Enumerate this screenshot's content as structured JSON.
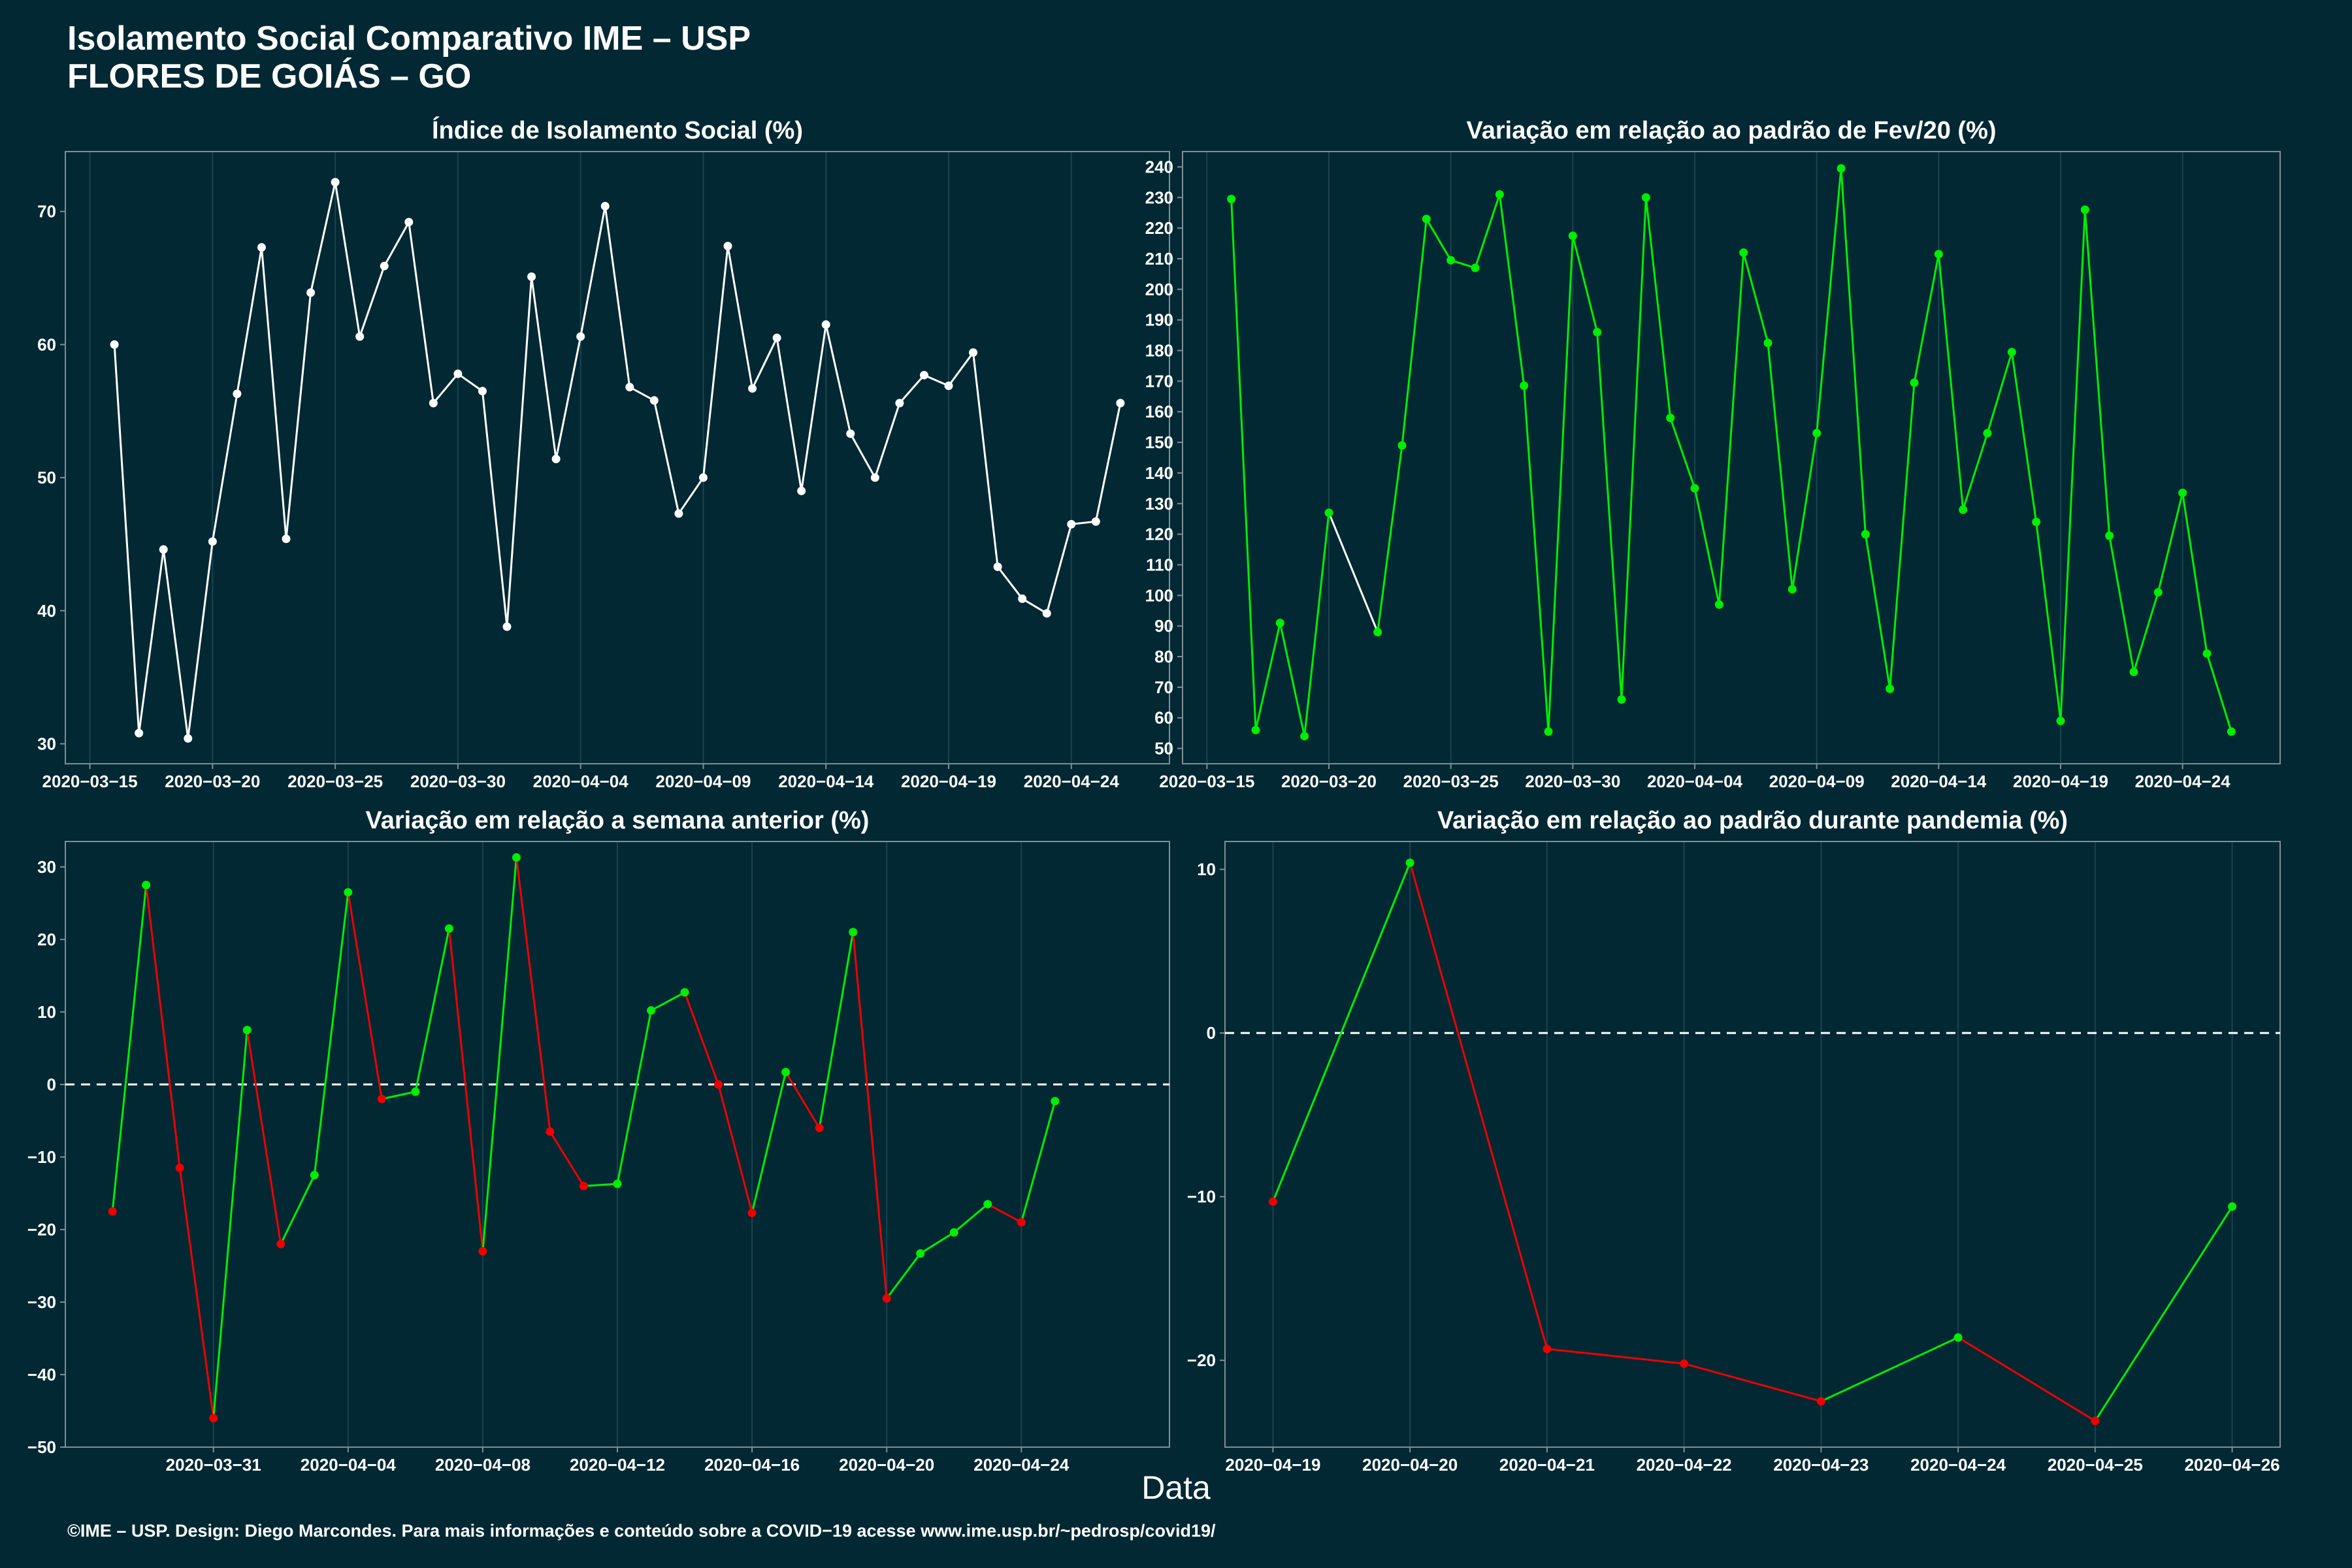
{
  "title_line1": "Isolamento Social Comparativo IME – USP",
  "title_line2": "FLORES DE GOIÁS – GO",
  "xlabel": "Data",
  "footer": "©IME – USP. Design: Diego Marcondes. Para mais informações e conteúdo sobre a COVID−19 acesse www.ime.usp.br/~pedrosp/covid19/",
  "colors": {
    "background": "#022833",
    "white": "#ffffff",
    "green": "#00ee00",
    "red": "#ee0000",
    "grid": "#1b4350"
  },
  "chart_data": [
    {
      "type": "line",
      "title": "Índice de Isolamento Social (%)",
      "start_date": "2020-03-16",
      "x_tick_labels": [
        "2020−03−15",
        "2020−03−20",
        "2020−03−25",
        "2020−03−30",
        "2020−04−04",
        "2020−04−09",
        "2020−04−14",
        "2020−04−19",
        "2020−04−24"
      ],
      "x_ticks": [
        "2020-03-15",
        "2020-03-20",
        "2020-03-25",
        "2020-03-30",
        "2020-04-04",
        "2020-04-09",
        "2020-04-14",
        "2020-04-19",
        "2020-04-24"
      ],
      "xlim": [
        "2020-03-14",
        "2020-04-28"
      ],
      "ylim": [
        28.5,
        74.5
      ],
      "y_ticks": [
        30,
        40,
        50,
        60,
        70
      ],
      "y_tick_labels": [
        "30",
        "40",
        "50",
        "60",
        "70"
      ],
      "color_mode": "white",
      "values": [
        60.0,
        30.8,
        44.6,
        30.4,
        45.2,
        56.3,
        67.3,
        45.4,
        63.9,
        72.2,
        60.6,
        65.9,
        69.2,
        55.6,
        57.8,
        56.5,
        38.8,
        65.1,
        51.4,
        60.6,
        70.4,
        56.8,
        55.8,
        47.3,
        50.0,
        67.4,
        56.7,
        60.5,
        49.0,
        61.5,
        53.3,
        50.0,
        55.6,
        57.7,
        56.9,
        59.4,
        43.3,
        40.9,
        39.8,
        46.5,
        46.7,
        55.6
      ]
    },
    {
      "type": "line",
      "title": "Variação em relação ao padrão de Fev/20 (%)",
      "start_date": "2020-03-16",
      "x_tick_labels": [
        "2020−03−15",
        "2020−03−20",
        "2020−03−25",
        "2020−03−30",
        "2020−04−04",
        "2020−04−09",
        "2020−04−14",
        "2020−04−19",
        "2020−04−24"
      ],
      "x_ticks": [
        "2020-03-15",
        "2020-03-20",
        "2020-03-25",
        "2020-03-30",
        "2020-04-04",
        "2020-04-09",
        "2020-04-14",
        "2020-04-19",
        "2020-04-24"
      ],
      "xlim": [
        "2020-03-14",
        "2020-04-28"
      ],
      "ylim": [
        45,
        245
      ],
      "y_ticks": [
        50,
        60,
        70,
        80,
        90,
        100,
        110,
        120,
        130,
        140,
        150,
        160,
        170,
        180,
        190,
        200,
        210,
        220,
        230,
        240
      ],
      "y_tick_labels": [
        "50",
        "60",
        "70",
        "80",
        "90",
        "100",
        "110",
        "120",
        "130",
        "140",
        "150",
        "160",
        "170",
        "180",
        "190",
        "200",
        "210",
        "220",
        "230",
        "240"
      ],
      "color_mode": "fev",
      "values": [
        229.5,
        56.0,
        91.0,
        54.0,
        127.0,
        null,
        88.0,
        149.0,
        223.0,
        209.5,
        207.0,
        231.0,
        168.5,
        55.5,
        217.5,
        186.0,
        66.0,
        230.0,
        158.0,
        135.0,
        97.0,
        212.0,
        182.5,
        102.0,
        153.0,
        239.5,
        120.0,
        69.5,
        169.5,
        211.5,
        128.0,
        153.0,
        179.5,
        124.0,
        59.0,
        226.0,
        119.5,
        75.0,
        101.0,
        133.5,
        81.0,
        55.5
      ]
    },
    {
      "type": "line",
      "title": "Variação em relação a semana anterior (%)",
      "start_date": "2020-03-28",
      "x_tick_labels": [
        "2020−03−31",
        "2020−04−04",
        "2020−04−08",
        "2020−04−12",
        "2020−04−16",
        "2020−04−20",
        "2020−04−24"
      ],
      "x_ticks": [
        "2020-03-31",
        "2020-04-04",
        "2020-04-08",
        "2020-04-12",
        "2020-04-16",
        "2020-04-20",
        "2020-04-24"
      ],
      "xlim": [
        "2020-03-26.6",
        "2020-04-28.4"
      ],
      "ylim": [
        -50,
        33.5
      ],
      "y_ticks": [
        -50,
        -40,
        -30,
        -20,
        -10,
        0,
        10,
        20,
        30
      ],
      "y_tick_labels": [
        "−50",
        "−40",
        "−30",
        "−20",
        "−10",
        "0",
        "10",
        "20",
        "30"
      ],
      "color_mode": "updown",
      "zero_line": true,
      "values": [
        -17.5,
        27.5,
        -11.5,
        -46.0,
        7.5,
        -22.0,
        -12.5,
        26.5,
        -2.0,
        -1.0,
        21.5,
        -23.0,
        31.3,
        -6.5,
        -14.0,
        -13.7,
        10.2,
        12.7,
        0.0,
        -17.7,
        1.7,
        -6.0,
        21.0,
        -29.5,
        -23.3,
        -20.4,
        -16.5,
        -19.0,
        -2.3
      ]
    },
    {
      "type": "line",
      "title": "Variação em relação ao padrão durante pandemia (%)",
      "start_date": "2020-04-19",
      "x_tick_labels": [
        "2020−04−19",
        "2020−04−20",
        "2020−04−21",
        "2020−04−22",
        "2020−04−23",
        "2020−04−24",
        "2020−04−25",
        "2020−04−26"
      ],
      "x_ticks": [
        "2020-04-19",
        "2020-04-20",
        "2020-04-21",
        "2020-04-22",
        "2020-04-23",
        "2020-04-24",
        "2020-04-25",
        "2020-04-26"
      ],
      "xlim": [
        "2020-04-18.65",
        "2020-04-26.35"
      ],
      "ylim": [
        -25.3,
        11.7
      ],
      "y_ticks": [
        -20,
        -10,
        0,
        10
      ],
      "y_tick_labels": [
        "−20",
        "−10",
        "0",
        "10"
      ],
      "color_mode": "updown",
      "zero_line": true,
      "values": [
        -10.3,
        10.4,
        -19.3,
        -20.2,
        -22.5,
        -18.6,
        -23.7,
        -10.6
      ]
    }
  ]
}
